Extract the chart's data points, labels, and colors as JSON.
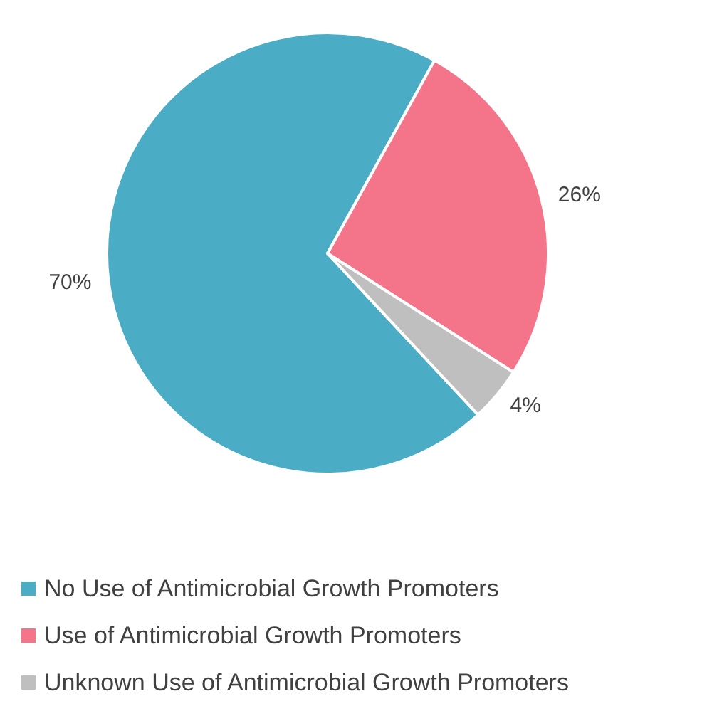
{
  "chart_data": {
    "type": "pie",
    "categories": [
      "No Use of Antimicrobial Growth Promoters",
      "Use of Antimicrobial Growth Promoters",
      "Unknown Use of Antimicrobial Growth Promoters"
    ],
    "values": [
      70,
      26,
      4
    ],
    "colors": [
      "#4bacc6",
      "#f4758a",
      "#bfbfbf"
    ],
    "value_labels": [
      "70%",
      "26%",
      "4%"
    ],
    "legend": "bottom"
  }
}
